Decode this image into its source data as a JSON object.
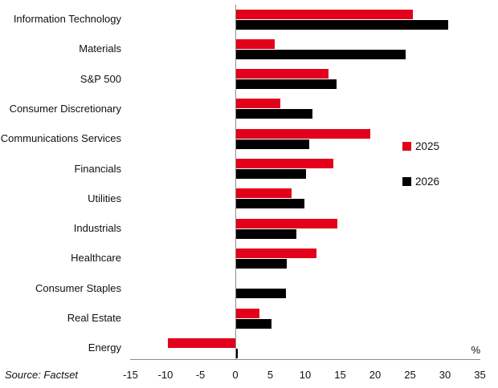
{
  "chart_data": {
    "type": "bar",
    "orientation": "horizontal",
    "title": "",
    "unit_label": "%",
    "xlim": [
      -15,
      35
    ],
    "x_ticks": [
      -15,
      -10,
      -5,
      0,
      5,
      10,
      15,
      20,
      25,
      30,
      35
    ],
    "grid": false,
    "legend_position": "right-middle",
    "categories": [
      "Information Technology",
      "Materials",
      "S&P 500",
      "Consumer Discretionary",
      "Communications Services",
      "Financials",
      "Utilities",
      "Industrials",
      "Healthcare",
      "Consumer Staples",
      "Real Estate",
      "Energy"
    ],
    "series": [
      {
        "name": "2025",
        "color": "#e2001a",
        "values": [
          25.3,
          5.5,
          13.2,
          6.3,
          19.2,
          13.9,
          7.9,
          14.5,
          11.5,
          0,
          3.3,
          -9.7
        ]
      },
      {
        "name": "2026",
        "color": "#000000",
        "values": [
          30.3,
          24.3,
          14.4,
          10.9,
          10.5,
          10.0,
          9.8,
          8.6,
          7.2,
          7.1,
          5.1,
          0.2
        ]
      }
    ]
  },
  "source_note": "Source: Factset"
}
